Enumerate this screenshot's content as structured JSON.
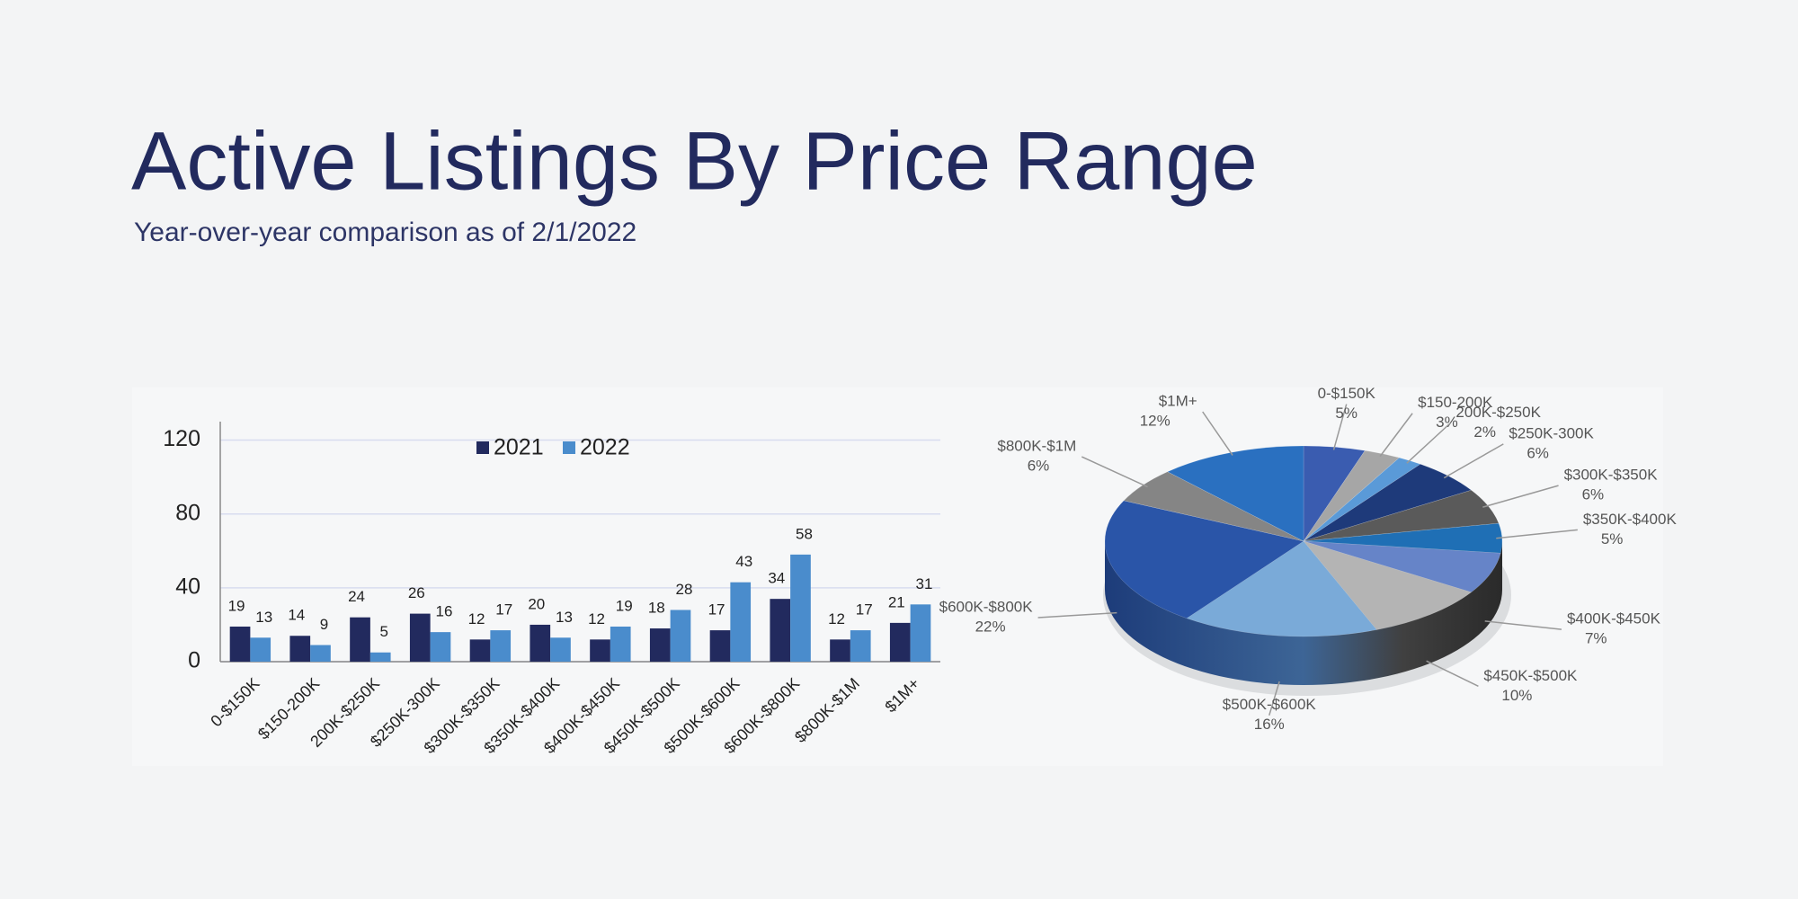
{
  "header": {
    "title": "Active Listings By Price Range",
    "subtitle": "Year-over-year comparison as of 2/1/2022"
  },
  "chart_data": [
    {
      "type": "bar",
      "categories": [
        "0-$150K",
        "$150-200K",
        "200K-$250K",
        "$250K-300K",
        "$300K-$350K",
        "$350K-$400K",
        "$400K-$450K",
        "$450K-$500K",
        "$500K-$600K",
        "$600K-$800K",
        "$800K-$1M",
        "$1M+"
      ],
      "series": [
        {
          "name": "2021",
          "color": "#222a5e",
          "values": [
            19,
            14,
            24,
            26,
            12,
            20,
            12,
            18,
            17,
            34,
            12,
            21
          ]
        },
        {
          "name": "2022",
          "color": "#4a8ccc",
          "values": [
            13,
            9,
            5,
            16,
            17,
            13,
            19,
            28,
            43,
            58,
            17,
            31
          ]
        }
      ],
      "ylim": [
        0,
        130
      ],
      "yticks": [
        0,
        40,
        80,
        120
      ],
      "grid": true,
      "legend": "top"
    },
    {
      "type": "pie",
      "categories": [
        "0-$150K",
        "$150-200K",
        "200K-$250K",
        "$250K-300K",
        "$300K-$350K",
        "$350K-$400K",
        "$400K-$450K",
        "$450K-$500K",
        "$500K-$600K",
        "$600K-$800K",
        "$800K-$1M",
        "$1M+"
      ],
      "values": [
        5,
        3,
        2,
        6,
        6,
        5,
        7,
        10,
        16,
        22,
        6,
        12
      ],
      "value_labels": [
        "5%",
        "3%",
        "2%",
        "6%",
        "6%",
        "5%",
        "7%",
        "10%",
        "16%",
        "22%",
        "6%",
        "12%"
      ],
      "colors": [
        "#3a5cb0",
        "#a6a6a6",
        "#5a9ad8",
        "#1e3a7a",
        "#5a5a5a",
        "#1f6fb5",
        "#6684c8",
        "#b4b4b4",
        "#7aaad8",
        "#2a55a8",
        "#858585",
        "#2a70c0"
      ]
    }
  ]
}
